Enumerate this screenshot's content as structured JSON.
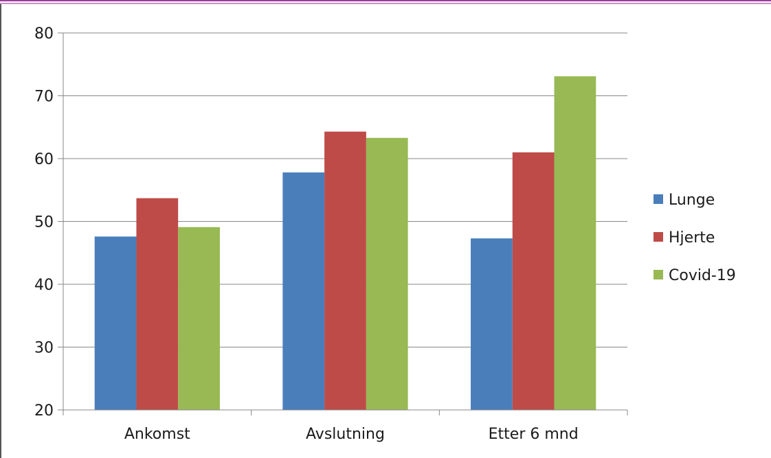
{
  "chart_data": {
    "type": "bar",
    "categories": [
      "Ankomst",
      "Avslutning",
      "Etter 6 mnd"
    ],
    "series": [
      {
        "name": "Lunge",
        "color": "#4a7ebb",
        "values": [
          47.6,
          57.8,
          47.3
        ]
      },
      {
        "name": "Hjerte",
        "color": "#be4b48",
        "values": [
          53.7,
          64.3,
          61.0
        ]
      },
      {
        "name": "Covid-19",
        "color": "#98b954",
        "values": [
          49.1,
          63.3,
          73.1
        ]
      }
    ],
    "title": "",
    "xlabel": "",
    "ylabel": "",
    "ylim": [
      20,
      80
    ],
    "yticks": [
      20,
      30,
      40,
      50,
      60,
      70,
      80
    ],
    "grid": true,
    "legend_position": "right"
  }
}
